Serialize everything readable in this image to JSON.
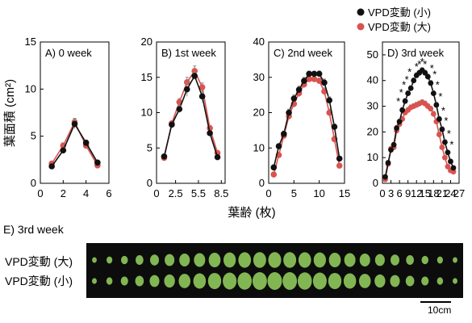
{
  "legend": {
    "entries": [
      {
        "label": "VPD変動 (小)",
        "color": "#111111"
      },
      {
        "label": "VPD変動 (大)",
        "color": "#d9534f"
      }
    ]
  },
  "axis": {
    "xlabel": "葉齢 (枚)",
    "ylabel": "葉面積 (cm²)"
  },
  "chart_data": [
    {
      "type": "line",
      "panel": "A) 0 week",
      "xlim": [
        0,
        6
      ],
      "xticks": [
        0,
        2,
        4,
        6
      ],
      "ylim": [
        0,
        15
      ],
      "yticks": [
        0,
        5,
        10,
        15
      ],
      "series": [
        {
          "name": "VPD変動 (小)",
          "x": [
            1,
            2,
            3,
            4,
            5
          ],
          "values": [
            1.8,
            3.5,
            6.3,
            4.3,
            2.2
          ],
          "err": [
            0.2,
            0.3,
            0.5,
            0.3,
            0.2
          ]
        },
        {
          "name": "VPD変動 (大)",
          "x": [
            1,
            2,
            3,
            4,
            5
          ],
          "values": [
            2.1,
            4.0,
            6.5,
            4.0,
            1.9
          ],
          "err": [
            0.2,
            0.3,
            0.4,
            0.3,
            0.2
          ]
        }
      ]
    },
    {
      "type": "line",
      "panel": "B) 1st week",
      "xlim": [
        0,
        9
      ],
      "xticks": [
        0,
        2.5,
        5.5,
        8.5
      ],
      "ylim": [
        0,
        20
      ],
      "yticks": [
        0,
        5,
        10,
        15,
        20
      ],
      "series": [
        {
          "name": "VPD変動 (小)",
          "x": [
            1,
            2,
            3,
            4,
            5,
            6,
            7,
            8
          ],
          "values": [
            3.8,
            8.3,
            10.5,
            13.3,
            15.2,
            12.3,
            7.1,
            3.7
          ],
          "err": [
            0.2,
            0.3,
            0.5,
            1.0,
            0.5,
            0.8,
            0.3,
            0.2
          ]
        },
        {
          "name": "VPD変動 (大)",
          "x": [
            1,
            2,
            3,
            4,
            5,
            6,
            7,
            8
          ],
          "values": [
            3.6,
            8.5,
            11.5,
            14.3,
            15.9,
            13.6,
            7.8,
            4.3
          ],
          "err": [
            0.2,
            0.3,
            0.5,
            0.7,
            0.7,
            0.6,
            0.4,
            0.2
          ]
        }
      ]
    },
    {
      "type": "line",
      "panel": "C) 2nd week",
      "xlim": [
        0,
        15
      ],
      "xticks": [
        0,
        5,
        10,
        15
      ],
      "ylim": [
        0,
        40
      ],
      "yticks": [
        0,
        10,
        20,
        30,
        40
      ],
      "series": [
        {
          "name": "VPD変動 (小)",
          "x": [
            1,
            2,
            3,
            4,
            5,
            6,
            7,
            8,
            9,
            10,
            11,
            12,
            13,
            14
          ],
          "values": [
            4.5,
            10.5,
            14.0,
            20.0,
            24.0,
            26.5,
            29.0,
            31.0,
            31.0,
            31.0,
            28.5,
            23.5,
            16.0,
            7.0
          ],
          "err": [
            0.5,
            0.5,
            0.8,
            1.0,
            1.0,
            1.0,
            1.0,
            0.7,
            0.7,
            0.8,
            1.0,
            1.0,
            0.8,
            0.5
          ]
        },
        {
          "name": "VPD変動 (大)",
          "x": [
            1,
            2,
            3,
            4,
            5,
            6,
            7,
            8,
            9,
            10,
            11,
            12,
            13,
            14
          ],
          "values": [
            2.5,
            8.0,
            13.5,
            19.0,
            22.5,
            25.5,
            28.0,
            29.5,
            29.5,
            29.0,
            26.0,
            20.0,
            12.5,
            5.0
          ],
          "err": [
            0.4,
            0.5,
            0.8,
            1.0,
            1.0,
            1.0,
            1.0,
            0.8,
            0.8,
            0.8,
            1.0,
            1.0,
            0.8,
            0.5
          ]
        }
      ]
    },
    {
      "type": "line",
      "panel": "D) 3rd week",
      "xlim": [
        0,
        27
      ],
      "xticks": [
        0,
        3,
        6,
        9,
        12,
        15,
        18,
        21,
        24,
        27
      ],
      "ylim": [
        0,
        55
      ],
      "yticks": [
        0,
        10,
        20,
        30,
        40,
        50
      ],
      "series": [
        {
          "name": "VPD変動 (小)",
          "x": [
            1,
            2,
            3,
            4,
            5,
            6,
            7,
            8,
            9,
            10,
            11,
            12,
            13,
            14,
            15,
            16,
            17,
            18,
            19,
            20,
            21,
            22,
            23,
            24,
            25
          ],
          "values": [
            2.5,
            8.0,
            13.0,
            15.0,
            21.5,
            24.0,
            28.5,
            32.0,
            35.0,
            37.0,
            40.0,
            42.0,
            43.0,
            44.0,
            43.0,
            41.5,
            39.0,
            35.0,
            30.5,
            25.0,
            21.0,
            16.0,
            12.0,
            8.5,
            6.0
          ],
          "err": [
            0.5,
            0.5,
            0.8,
            1.0,
            1.0,
            1.0,
            1.0,
            1.0,
            1.0,
            1.0,
            1.0,
            1.0,
            1.0,
            1.0,
            1.0,
            1.0,
            1.0,
            1.0,
            1.0,
            1.0,
            1.0,
            1.0,
            0.8,
            0.6,
            0.5
          ]
        },
        {
          "name": "VPD変動 (大)",
          "x": [
            1,
            2,
            3,
            4,
            5,
            6,
            7,
            8,
            9,
            10,
            11,
            12,
            13,
            14,
            15,
            16,
            17,
            18,
            19,
            20,
            21,
            22,
            23,
            24,
            25
          ],
          "values": [
            1.5,
            7.5,
            13.5,
            14.0,
            20.5,
            23.0,
            25.0,
            27.5,
            28.5,
            29.5,
            30.0,
            30.5,
            31.0,
            31.5,
            31.0,
            30.0,
            29.0,
            27.0,
            24.0,
            19.0,
            14.0,
            10.0,
            6.5,
            5.0,
            4.5
          ],
          "err": [
            0.4,
            0.5,
            0.8,
            1.0,
            1.0,
            1.0,
            1.0,
            1.0,
            1.0,
            1.0,
            1.0,
            1.0,
            1.0,
            1.0,
            1.0,
            1.0,
            1.0,
            1.0,
            1.0,
            1.0,
            0.8,
            0.7,
            0.6,
            0.5,
            0.4
          ]
        }
      ],
      "significance_marker": "*",
      "significant_x": [
        7,
        8,
        9,
        10,
        11,
        12,
        13,
        14,
        15,
        16,
        17,
        18,
        19,
        20,
        21,
        22,
        23
      ]
    }
  ],
  "photo": {
    "panel": "E) 3rd week",
    "rows": [
      {
        "label": "VPD変動 (大)",
        "leaf_count": 25
      },
      {
        "label": "VPD変動 (小)",
        "leaf_count": 25
      }
    ],
    "scale_label": "10cm",
    "leaf_color": "#8fc95b"
  }
}
